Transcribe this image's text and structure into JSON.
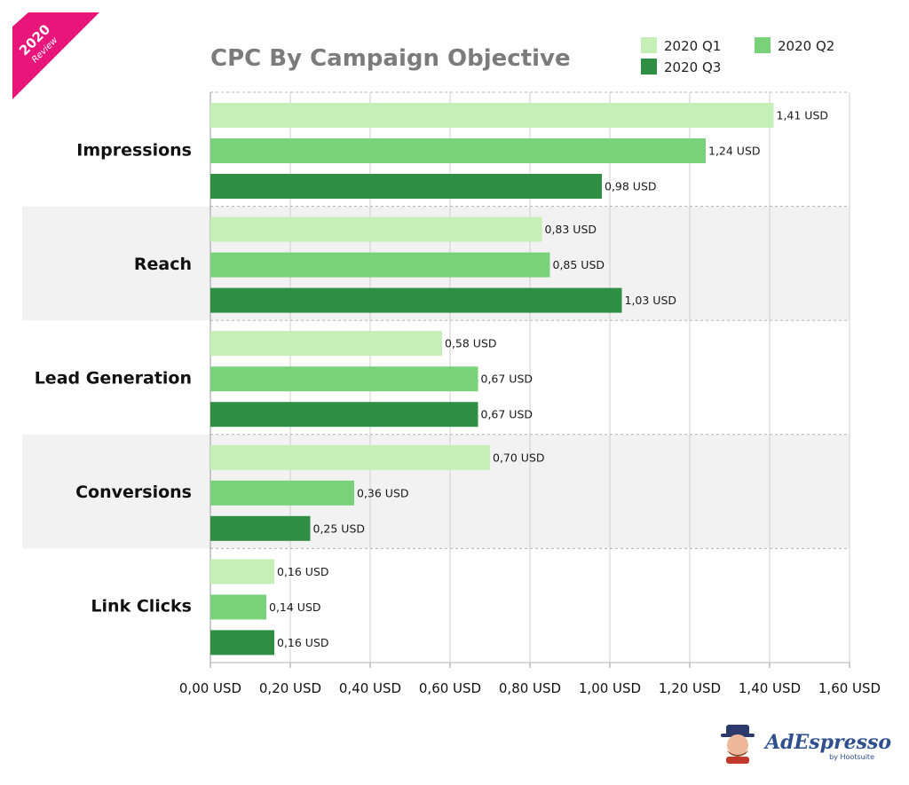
{
  "ribbon": {
    "year": "2020",
    "subtitle": "Review",
    "color": "#e8167a"
  },
  "brand": {
    "name": "AdEspresso",
    "sub": "by Hootsuite"
  },
  "colors": {
    "q1": "#c6efb7",
    "q2": "#79d27a",
    "q3": "#2f8f45",
    "band": "#f2f2f2",
    "grid": "#cfcfcf",
    "title": "#7b7b7b"
  },
  "chart_data": {
    "type": "bar",
    "orientation": "horizontal",
    "title": "CPC By Campaign Objective",
    "categories": [
      "Impressions",
      "Reach",
      "Lead Generation",
      "Conversions",
      "Link Clicks"
    ],
    "series": [
      {
        "name": "2020 Q1",
        "values": [
          1.41,
          0.83,
          0.58,
          0.7,
          0.16
        ],
        "labels": [
          "1,41 USD",
          "0,83 USD",
          "0,58 USD",
          "0,70 USD",
          "0,16 USD"
        ]
      },
      {
        "name": "2020 Q2",
        "values": [
          1.24,
          0.85,
          0.67,
          0.36,
          0.14
        ],
        "labels": [
          "1,24 USD",
          "0,85 USD",
          "0,67 USD",
          "0,36 USD",
          "0,14 USD"
        ]
      },
      {
        "name": "2020 Q3",
        "values": [
          0.98,
          1.03,
          0.67,
          0.25,
          0.16
        ],
        "labels": [
          "0,98 USD",
          "1,03 USD",
          "0,67 USD",
          "0,25 USD",
          "0,16 USD"
        ]
      }
    ],
    "xlim": [
      0,
      1.6
    ],
    "xticks": [
      0,
      0.2,
      0.4,
      0.6,
      0.8,
      1.0,
      1.2,
      1.4,
      1.6
    ],
    "xtick_labels": [
      "0,00 USD",
      "0,20 USD",
      "0,40 USD",
      "0,60 USD",
      "0,80 USD",
      "1,00 USD",
      "1,20 USD",
      "1,40 USD",
      "1,60 USD"
    ],
    "grid": true,
    "legend_position": "top-right"
  }
}
